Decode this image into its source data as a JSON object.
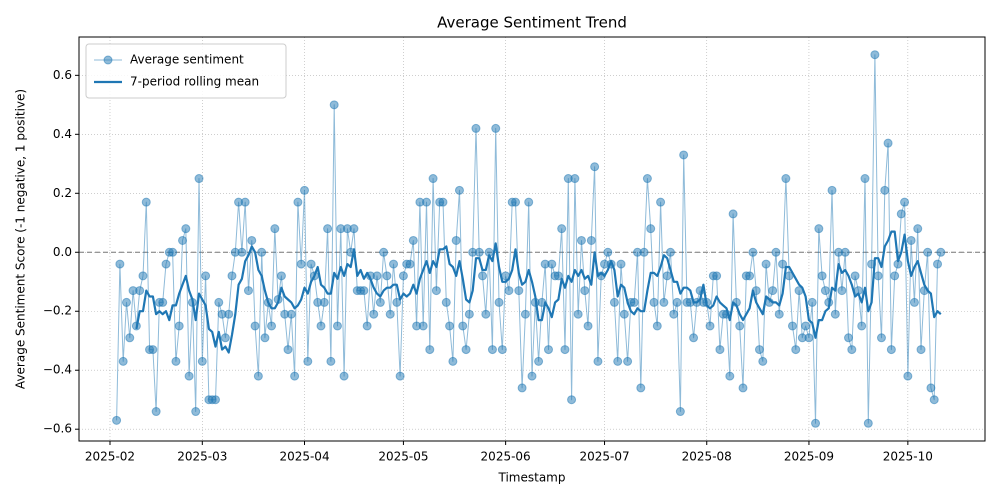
{
  "chart_data": {
    "type": "line",
    "title": "Average Sentiment Trend",
    "xlabel": "Timestamp",
    "ylabel": "Average Sentiment Score (-1 negative, 1 positive)",
    "x": [
      33,
      34,
      35,
      36,
      37,
      38,
      39,
      40,
      41,
      42,
      43,
      44,
      45,
      46,
      47,
      48,
      49,
      50,
      51,
      52,
      53,
      54,
      55,
      56,
      57,
      58,
      59,
      60,
      61,
      62,
      63,
      64,
      65,
      66,
      67,
      68,
      69,
      70,
      71,
      72,
      73,
      74,
      75,
      76,
      77,
      78,
      79,
      80,
      81,
      82,
      83,
      84,
      85,
      86,
      87,
      88,
      89,
      90,
      91,
      92,
      93,
      94,
      95,
      96,
      97,
      98,
      99,
      100,
      101,
      102,
      103,
      104,
      105,
      106,
      107,
      108,
      109,
      110,
      111,
      112,
      113,
      114,
      115,
      116,
      117,
      118,
      119,
      120,
      121,
      122,
      123,
      124,
      125,
      126,
      127,
      128,
      129,
      130,
      131,
      132,
      133,
      134,
      135,
      136,
      137,
      138,
      139,
      140,
      141,
      142,
      143,
      144,
      145,
      146,
      147,
      148,
      149,
      150,
      151,
      152,
      153,
      154,
      155,
      156,
      157,
      158,
      159,
      160,
      161,
      162,
      163,
      164,
      165,
      166,
      167,
      168,
      169,
      170,
      171,
      172,
      173,
      174,
      175,
      176,
      177,
      178,
      179,
      180,
      181,
      182,
      183,
      184,
      185,
      186,
      187,
      188,
      189,
      190,
      191,
      192,
      193,
      194,
      195,
      196,
      197,
      198,
      199,
      200,
      201,
      202,
      203,
      204,
      205,
      206,
      207,
      208,
      209,
      210,
      211,
      212,
      213,
      214,
      215,
      216,
      217,
      218,
      219,
      220,
      221,
      222,
      223,
      224,
      225,
      226,
      227,
      228,
      229,
      230,
      231,
      232,
      233,
      234,
      235,
      236,
      237,
      238,
      239,
      240,
      241,
      242,
      243,
      244,
      245,
      246,
      247,
      248,
      249,
      250,
      251,
      252,
      253,
      254,
      255,
      256,
      257,
      258,
      259,
      260,
      261,
      262,
      263,
      264,
      265,
      266,
      267,
      268,
      269,
      270,
      271,
      272,
      273,
      274,
      275,
      276,
      277,
      278,
      279,
      280,
      281,
      282,
      283
    ],
    "series": [
      {
        "name": "Average sentiment",
        "color": "#1f77b4",
        "marker": true,
        "alpha": 0.5,
        "line_width": 1,
        "values": [
          -0.57,
          -0.04,
          -0.37,
          -0.17,
          -0.29,
          -0.13,
          -0.25,
          -0.13,
          -0.08,
          0.17,
          -0.33,
          -0.33,
          -0.54,
          -0.17,
          -0.17,
          -0.04,
          0,
          0,
          -0.37,
          -0.25,
          0.04,
          0.08,
          -0.42,
          -0.17,
          -0.54,
          0.25,
          -0.37,
          -0.08,
          -0.5,
          -0.5,
          -0.5,
          -0.17,
          -0.21,
          -0.29,
          -0.21,
          -0.08,
          0,
          0.17,
          0,
          0.17,
          -0.13,
          0.04,
          -0.25,
          -0.42,
          0,
          -0.29,
          -0.17,
          -0.25,
          0.08,
          -0.16,
          -0.08,
          -0.21,
          -0.33,
          -0.21,
          -0.42,
          0.17,
          -0.04,
          0.21,
          -0.37,
          -0.04,
          -0.08,
          -0.17,
          -0.25,
          -0.17,
          0.08,
          -0.37,
          0.5,
          -0.25,
          0.08,
          -0.42,
          0.08,
          0,
          0.08,
          -0.13,
          -0.13,
          -0.13,
          -0.25,
          -0.08,
          -0.21,
          -0.08,
          -0.17,
          0,
          -0.08,
          -0.21,
          -0.04,
          -0.17,
          -0.42,
          -0.08,
          -0.04,
          -0.04,
          0.04,
          -0.25,
          0.17,
          -0.25,
          0.17,
          -0.33,
          0.25,
          -0.13,
          0.17,
          0.17,
          -0.17,
          -0.25,
          -0.37,
          0.04,
          0.21,
          -0.25,
          -0.33,
          -0.21,
          0,
          0.42,
          0,
          -0.08,
          -0.21,
          0,
          -0.33,
          0.42,
          -0.17,
          -0.33,
          -0.08,
          -0.13,
          0.17,
          0.17,
          -0.13,
          -0.46,
          -0.21,
          0.17,
          -0.42,
          -0.17,
          -0.37,
          -0.17,
          -0.04,
          -0.33,
          -0.04,
          -0.08,
          -0.08,
          0.08,
          -0.33,
          0.25,
          -0.5,
          0.25,
          -0.21,
          0.04,
          -0.13,
          -0.25,
          0.04,
          0.29,
          -0.37,
          -0.08,
          -0.04,
          0,
          -0.04,
          -0.17,
          -0.37,
          -0.04,
          -0.21,
          -0.37,
          -0.17,
          -0.17,
          0,
          -0.46,
          0,
          0.25,
          0.08,
          -0.17,
          -0.25,
          0.17,
          -0.17,
          -0.08,
          0,
          -0.21,
          -0.17,
          -0.54,
          0.33,
          -0.17,
          -0.17,
          -0.29,
          -0.17,
          -0.13,
          -0.17,
          -0.17,
          -0.25,
          -0.08,
          -0.08,
          -0.33,
          -0.21,
          -0.21,
          -0.42,
          0.13,
          -0.17,
          -0.25,
          -0.46,
          -0.08,
          -0.08,
          0,
          -0.13,
          -0.33,
          -0.37,
          -0.04,
          -0.17,
          -0.13,
          0,
          -0.21,
          -0.04,
          0.25,
          -0.08,
          -0.25,
          -0.33,
          -0.13,
          -0.29,
          -0.25,
          -0.29,
          -0.17,
          -0.58,
          0.08,
          -0.08,
          -0.13,
          -0.17,
          0.21,
          -0.21,
          0,
          -0.13,
          0,
          -0.29,
          -0.33,
          -0.08,
          -0.13,
          -0.25,
          0.25,
          -0.58,
          -0.04,
          0.67,
          -0.08,
          -0.29,
          0.21,
          0.37,
          -0.33,
          -0.08,
          -0.04,
          0.13,
          0.17,
          -0.42,
          0.04,
          -0.17,
          0.08,
          -0.33,
          -0.13,
          0,
          -0.46,
          -0.5,
          -0.04,
          0
        ]
      },
      {
        "name": "7-period rolling mean",
        "color": "#1f77b4",
        "marker": false,
        "alpha": 1,
        "line_width": 2.2,
        "values": [
          null,
          null,
          null,
          null,
          null,
          null,
          -0.26,
          -0.2,
          -0.2,
          -0.13,
          -0.15,
          -0.15,
          -0.21,
          -0.2,
          -0.21,
          -0.2,
          -0.23,
          -0.18,
          -0.18,
          -0.14,
          -0.11,
          -0.08,
          -0.13,
          -0.16,
          -0.23,
          -0.14,
          -0.16,
          -0.18,
          -0.26,
          -0.27,
          -0.32,
          -0.27,
          -0.33,
          -0.32,
          -0.34,
          -0.28,
          -0.21,
          -0.11,
          -0.09,
          -0.03,
          -0.01,
          0.02,
          0,
          -0.06,
          -0.08,
          -0.13,
          -0.17,
          -0.19,
          -0.19,
          -0.17,
          -0.12,
          -0.15,
          -0.16,
          -0.17,
          -0.19,
          -0.18,
          -0.16,
          -0.12,
          -0.14,
          -0.1,
          -0.08,
          -0.05,
          -0.11,
          -0.12,
          -0.14,
          -0.14,
          -0.07,
          -0.09,
          -0.05,
          -0.08,
          -0.04,
          -0.05,
          0.01,
          -0.08,
          -0.06,
          -0.09,
          -0.07,
          -0.09,
          -0.12,
          -0.14,
          -0.15,
          -0.13,
          -0.12,
          -0.12,
          -0.11,
          -0.11,
          -0.16,
          -0.14,
          -0.15,
          -0.14,
          -0.11,
          -0.14,
          -0.09,
          -0.06,
          -0.03,
          -0.07,
          -0.03,
          -0.05,
          0.01,
          0.01,
          0.02,
          -0.04,
          -0.05,
          -0.08,
          -0.03,
          -0.09,
          -0.16,
          -0.17,
          -0.13,
          -0.02,
          -0.02,
          -0.06,
          -0.06,
          -0.01,
          -0.03,
          0.03,
          -0.05,
          -0.1,
          -0.1,
          -0.09,
          -0.06,
          0.01,
          -0.07,
          -0.11,
          -0.1,
          -0.06,
          -0.1,
          -0.15,
          -0.23,
          -0.23,
          -0.17,
          -0.19,
          -0.22,
          -0.17,
          -0.16,
          -0.09,
          -0.12,
          -0.08,
          -0.1,
          -0.06,
          -0.08,
          -0.06,
          -0.09,
          -0.08,
          -0.11,
          0,
          -0.08,
          -0.07,
          -0.08,
          -0.06,
          -0.03,
          -0.06,
          -0.15,
          -0.11,
          -0.12,
          -0.17,
          -0.2,
          -0.21,
          -0.19,
          -0.2,
          -0.2,
          -0.13,
          -0.07,
          -0.07,
          -0.08,
          -0.05,
          -0.01,
          -0.02,
          -0.06,
          -0.1,
          -0.1,
          -0.14,
          -0.12,
          -0.12,
          -0.13,
          -0.17,
          -0.17,
          -0.16,
          -0.11,
          -0.18,
          -0.19,
          -0.18,
          -0.15,
          -0.17,
          -0.18,
          -0.19,
          -0.23,
          -0.17,
          -0.18,
          -0.21,
          -0.23,
          -0.21,
          -0.19,
          -0.13,
          -0.17,
          -0.19,
          -0.21,
          -0.15,
          -0.16,
          -0.17,
          -0.17,
          -0.18,
          -0.14,
          -0.05,
          -0.05,
          -0.07,
          -0.09,
          -0.11,
          -0.12,
          -0.15,
          -0.23,
          -0.24,
          -0.29,
          -0.23,
          -0.23,
          -0.2,
          -0.19,
          -0.12,
          -0.13,
          -0.04,
          -0.07,
          -0.06,
          -0.08,
          -0.11,
          -0.15,
          -0.14,
          -0.17,
          -0.12,
          -0.2,
          -0.17,
          -0.02,
          -0.02,
          -0.05,
          0.02,
          0.04,
          0.07,
          0.07,
          -0.03,
          0,
          0.06,
          -0.03,
          -0.08,
          -0.05,
          -0.03,
          -0.07,
          -0.11,
          -0.13,
          -0.14,
          -0.22,
          -0.2,
          -0.21
        ]
      }
    ],
    "xlim": [
      21.6,
      296.4
    ],
    "xticks": [
      {
        "value": 31,
        "label": "2025-02"
      },
      {
        "value": 59,
        "label": "2025-03"
      },
      {
        "value": 90,
        "label": "2025-04"
      },
      {
        "value": 120,
        "label": "2025-05"
      },
      {
        "value": 151,
        "label": "2025-06"
      },
      {
        "value": 181,
        "label": "2025-07"
      },
      {
        "value": 212,
        "label": "2025-08"
      },
      {
        "value": 243,
        "label": "2025-09"
      },
      {
        "value": 273,
        "label": "2025-10"
      }
    ],
    "ylim": [
      -0.64,
      0.73
    ],
    "yticks": [
      {
        "value": -0.6,
        "label": "−0.6"
      },
      {
        "value": -0.4,
        "label": "−0.4"
      },
      {
        "value": -0.2,
        "label": "−0.2"
      },
      {
        "value": 0,
        "label": "0.0"
      },
      0.2,
      0.4,
      0.6
    ],
    "hline": 0,
    "grid": true,
    "legend": "upper-left"
  }
}
